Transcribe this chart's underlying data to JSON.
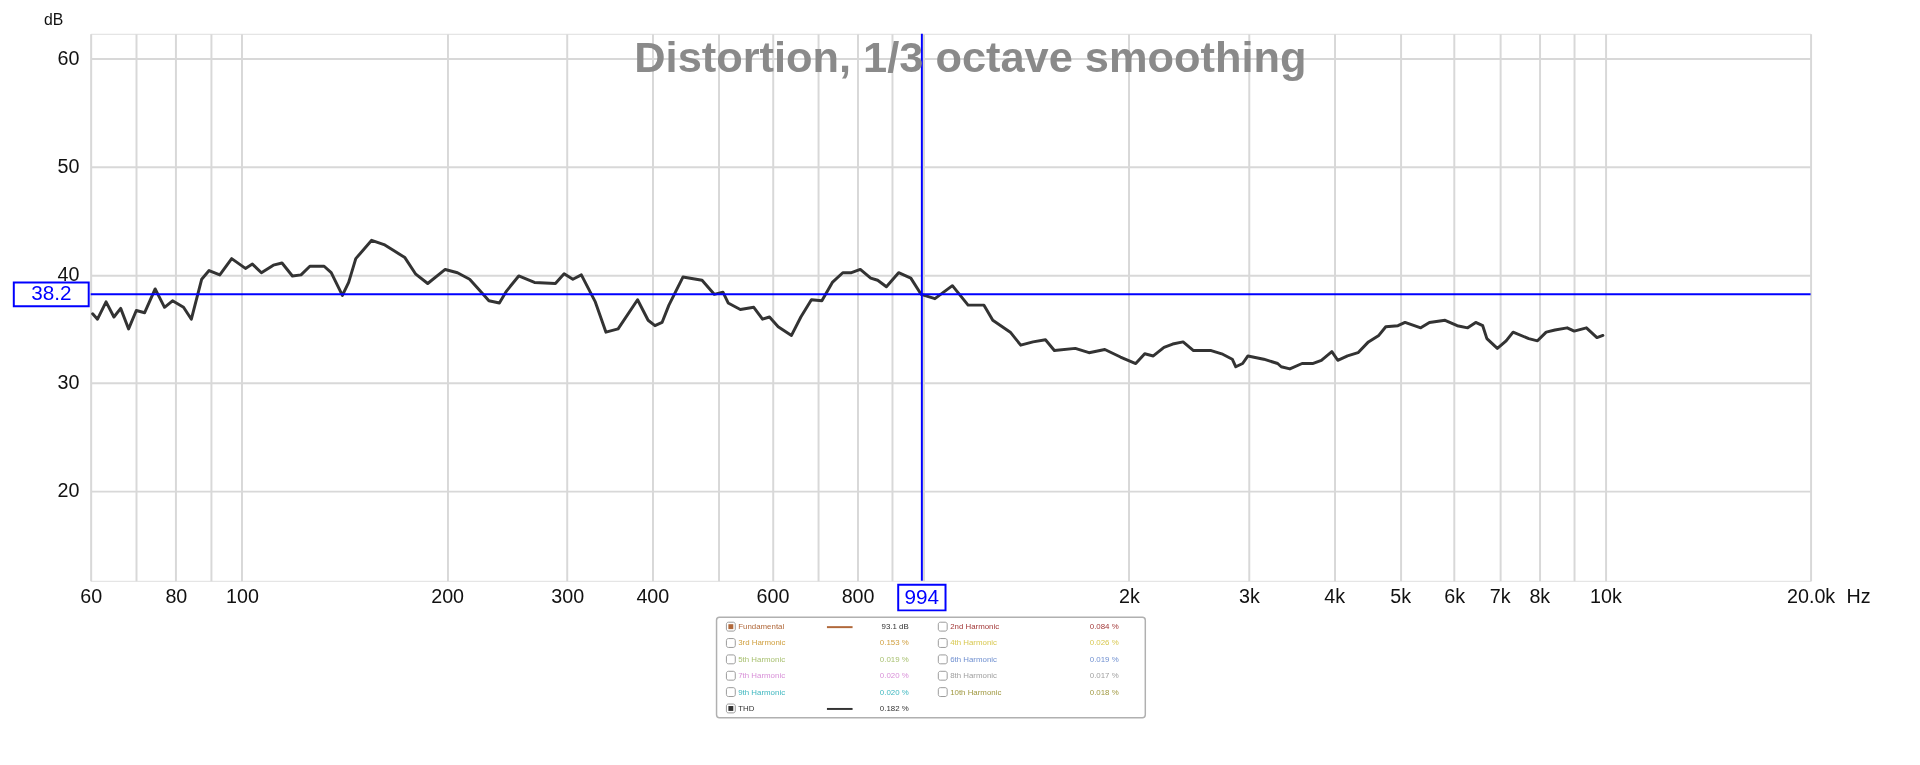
{
  "chart_data": {
    "type": "line",
    "title": "Distortion, 1/3 octave smoothing",
    "xlabel": "Hz",
    "ylabel": "dB",
    "log": "x",
    "grid": true,
    "legend": "bottom",
    "line_style": "solid",
    "marker": "none",
    "xlim": [
      60,
      20000
    ],
    "ylim": [
      11.7,
      62.3
    ],
    "xticks": [
      60,
      {
        "value": 70,
        "label": null
      },
      80,
      {
        "value": 90,
        "label": null
      },
      100,
      200,
      300,
      400,
      {
        "value": 500,
        "label": null
      },
      600,
      {
        "value": 700,
        "label": null
      },
      800,
      {
        "value": 900,
        "label": null
      },
      {
        "value": 1000,
        "label": null
      },
      {
        "value": 2000,
        "label": "2k"
      },
      {
        "value": 3000,
        "label": "3k"
      },
      {
        "value": 4000,
        "label": "4k"
      },
      {
        "value": 5000,
        "label": "5k"
      },
      {
        "value": 6000,
        "label": "6k"
      },
      {
        "value": 7000,
        "label": "7k"
      },
      {
        "value": 8000,
        "label": "8k"
      },
      {
        "value": 9000,
        "label": null
      },
      {
        "value": 10000,
        "label": "10k"
      },
      {
        "value": 20000,
        "label": "20.0k"
      }
    ],
    "yticks": [
      20,
      30,
      40,
      50,
      60
    ],
    "x": [
      60.4,
      61.4,
      63.2,
      64.9,
      66.4,
      68.2,
      70.0,
      72.0,
      74.6,
      77.0,
      79.1,
      82.1,
      84.3,
      87.3,
      89.5,
      92.8,
      96.6,
      101.2,
      103.6,
      106.8,
      111.2,
      114.5,
      118.6,
      122.1,
      125.8,
      132.0,
      135.2,
      140.4,
      143.4,
      146.9,
      155.0,
      161.6,
      167.4,
      173.4,
      179.7,
      187.3,
      198.7,
      207.1,
      215.8,
      222.3,
      230.3,
      238.6,
      244.4,
      254.7,
      268.6,
      288.3,
      296.9,
      305.8,
      314.7,
      329.9,
      342.0,
      356.3,
      380.5,
      394.3,
      403.5,
      413.3,
      423.0,
      443.5,
      473.1,
      493.0,
      507.7,
      516.7,
      538.4,
      563.4,
      580.3,
      594.1,
      611.8,
      639.9,
      660.5,
      684.5,
      709.1,
      734.6,
      761,
      783.7,
      807.3,
      836.3,
      856.2,
      881.8,
      918.9,
      957.6,
      991.3,
      1038.8,
      1102,
      1162,
      1226,
      1263,
      1340,
      1388,
      1447,
      1509,
      1555,
      1669,
      1748,
      1844,
      1944,
      2047,
      2110,
      2172,
      2252,
      2319,
      2402,
      2488,
      2641,
      2737,
      2836,
      2870,
      2937,
      2990,
      3154,
      3306,
      3346,
      3445,
      3590,
      3719,
      3832,
      3970,
      4050,
      4186,
      4337,
      4492,
      4652,
      4763,
      4963,
      5083,
      5360,
      5520,
      5819,
      6063,
      6281,
      6454,
      6608,
      6702,
      6943,
      7152,
      7322,
      7720,
      7951,
      8188,
      8435,
      8790,
      9000,
      9380,
      9720,
      9917
    ],
    "series": [
      {
        "name": "Fundamental",
        "color": "#b0683a",
        "values": [
          null,
          null,
          null,
          null,
          null,
          null,
          null,
          null,
          null,
          null,
          null,
          null,
          null,
          null,
          null,
          null,
          null,
          null,
          null,
          null,
          null,
          null,
          null,
          null,
          null,
          null,
          null,
          null,
          null,
          null,
          null,
          null,
          null,
          null,
          null,
          null,
          null,
          null,
          null,
          null,
          null,
          null,
          null,
          null,
          null,
          null,
          null,
          null,
          null,
          null,
          null,
          null,
          null,
          null,
          null,
          null,
          null,
          null,
          null,
          null,
          null,
          null,
          null,
          null,
          null,
          null,
          null,
          null,
          null,
          null,
          null,
          null,
          null,
          null,
          null,
          null,
          null,
          null,
          null,
          null,
          null,
          null,
          null,
          null,
          null,
          null,
          null,
          null,
          null,
          null,
          null,
          null,
          null,
          null,
          null,
          null,
          null,
          null,
          null,
          null,
          null,
          null,
          null,
          null,
          null,
          null,
          null,
          null,
          null,
          null,
          null,
          null,
          null,
          null,
          null,
          null,
          null,
          null,
          null,
          null,
          null,
          null,
          null,
          null,
          null,
          null,
          null,
          null,
          null,
          null,
          null,
          null,
          null,
          null,
          null,
          null,
          null,
          null,
          null,
          null,
          null,
          null,
          null,
          null
        ]
      },
      {
        "name": "THD",
        "color": "#333333",
        "values": [
          36.4,
          35.9,
          37.5,
          36.1,
          36.9,
          35.0,
          36.7,
          36.5,
          38.7,
          37.0,
          37.6,
          37.0,
          35.9,
          39.6,
          40.4,
          40.0,
          41.5,
          40.6,
          41.0,
          40.2,
          40.9,
          41.1,
          39.9,
          40.0,
          40.8,
          40.8,
          40.2,
          38.1,
          39.3,
          41.5,
          43.2,
          42.8,
          42.2,
          41.6,
          40.1,
          39.2,
          40.5,
          40.2,
          39.6,
          38.7,
          37.6,
          37.4,
          38.5,
          39.9,
          39.3,
          39.2,
          40.1,
          39.6,
          40.0,
          37.5,
          34.7,
          35.0,
          37.7,
          35.8,
          35.3,
          35.6,
          37.2,
          39.8,
          39.5,
          38.2,
          38.4,
          37.4,
          36.8,
          37.0,
          35.9,
          36.1,
          35.2,
          34.4,
          36.1,
          37.7,
          37.6,
          39.3,
          40.2,
          40.2,
          40.5,
          39.7,
          39.5,
          38.9,
          40.2,
          39.7,
          38.2,
          37.8,
          39.0,
          37.2,
          37.2,
          35.8,
          34.7,
          33.5,
          33.8,
          34.0,
          33.0,
          33.2,
          32.8,
          33.1,
          32.4,
          31.8,
          32.7,
          32.5,
          33.3,
          33.6,
          33.8,
          33.0,
          33.0,
          32.7,
          32.2,
          31.5,
          31.8,
          32.5,
          32.2,
          31.8,
          31.5,
          31.3,
          31.8,
          31.8,
          32.1,
          32.9,
          32.1,
          32.5,
          32.8,
          33.8,
          34.4,
          35.2,
          35.3,
          35.6,
          35.1,
          35.6,
          35.8,
          35.3,
          35.1,
          35.6,
          35.3,
          34.1,
          33.2,
          33.9,
          34.7,
          34.1,
          33.9,
          34.7,
          34.9,
          35.1,
          34.8,
          35.1,
          34.2,
          34.4
        ]
      }
    ],
    "ref_lines": [
      {
        "axis": "x",
        "value": 994,
        "label": "994",
        "color": "#0000ff"
      },
      {
        "axis": "y",
        "value": 38.2,
        "label": "38.2",
        "color": "#0000ff"
      }
    ],
    "annotations": [
      "93.1 dB",
      "2nd Harmonic",
      "0.084 %",
      "3rd Harmonic",
      "0.153 %",
      "4th Harmonic",
      "0.026 %",
      "5th Harmonic",
      "0.019 %",
      "6th Harmonic",
      "0.019 %",
      "7th Harmonic",
      "0.020 %",
      "8th Harmonic",
      "0.017 %",
      "9th Harmonic",
      "0.020 %",
      "10th Harmonic",
      "0.018 %",
      "0.182 %"
    ]
  }
}
